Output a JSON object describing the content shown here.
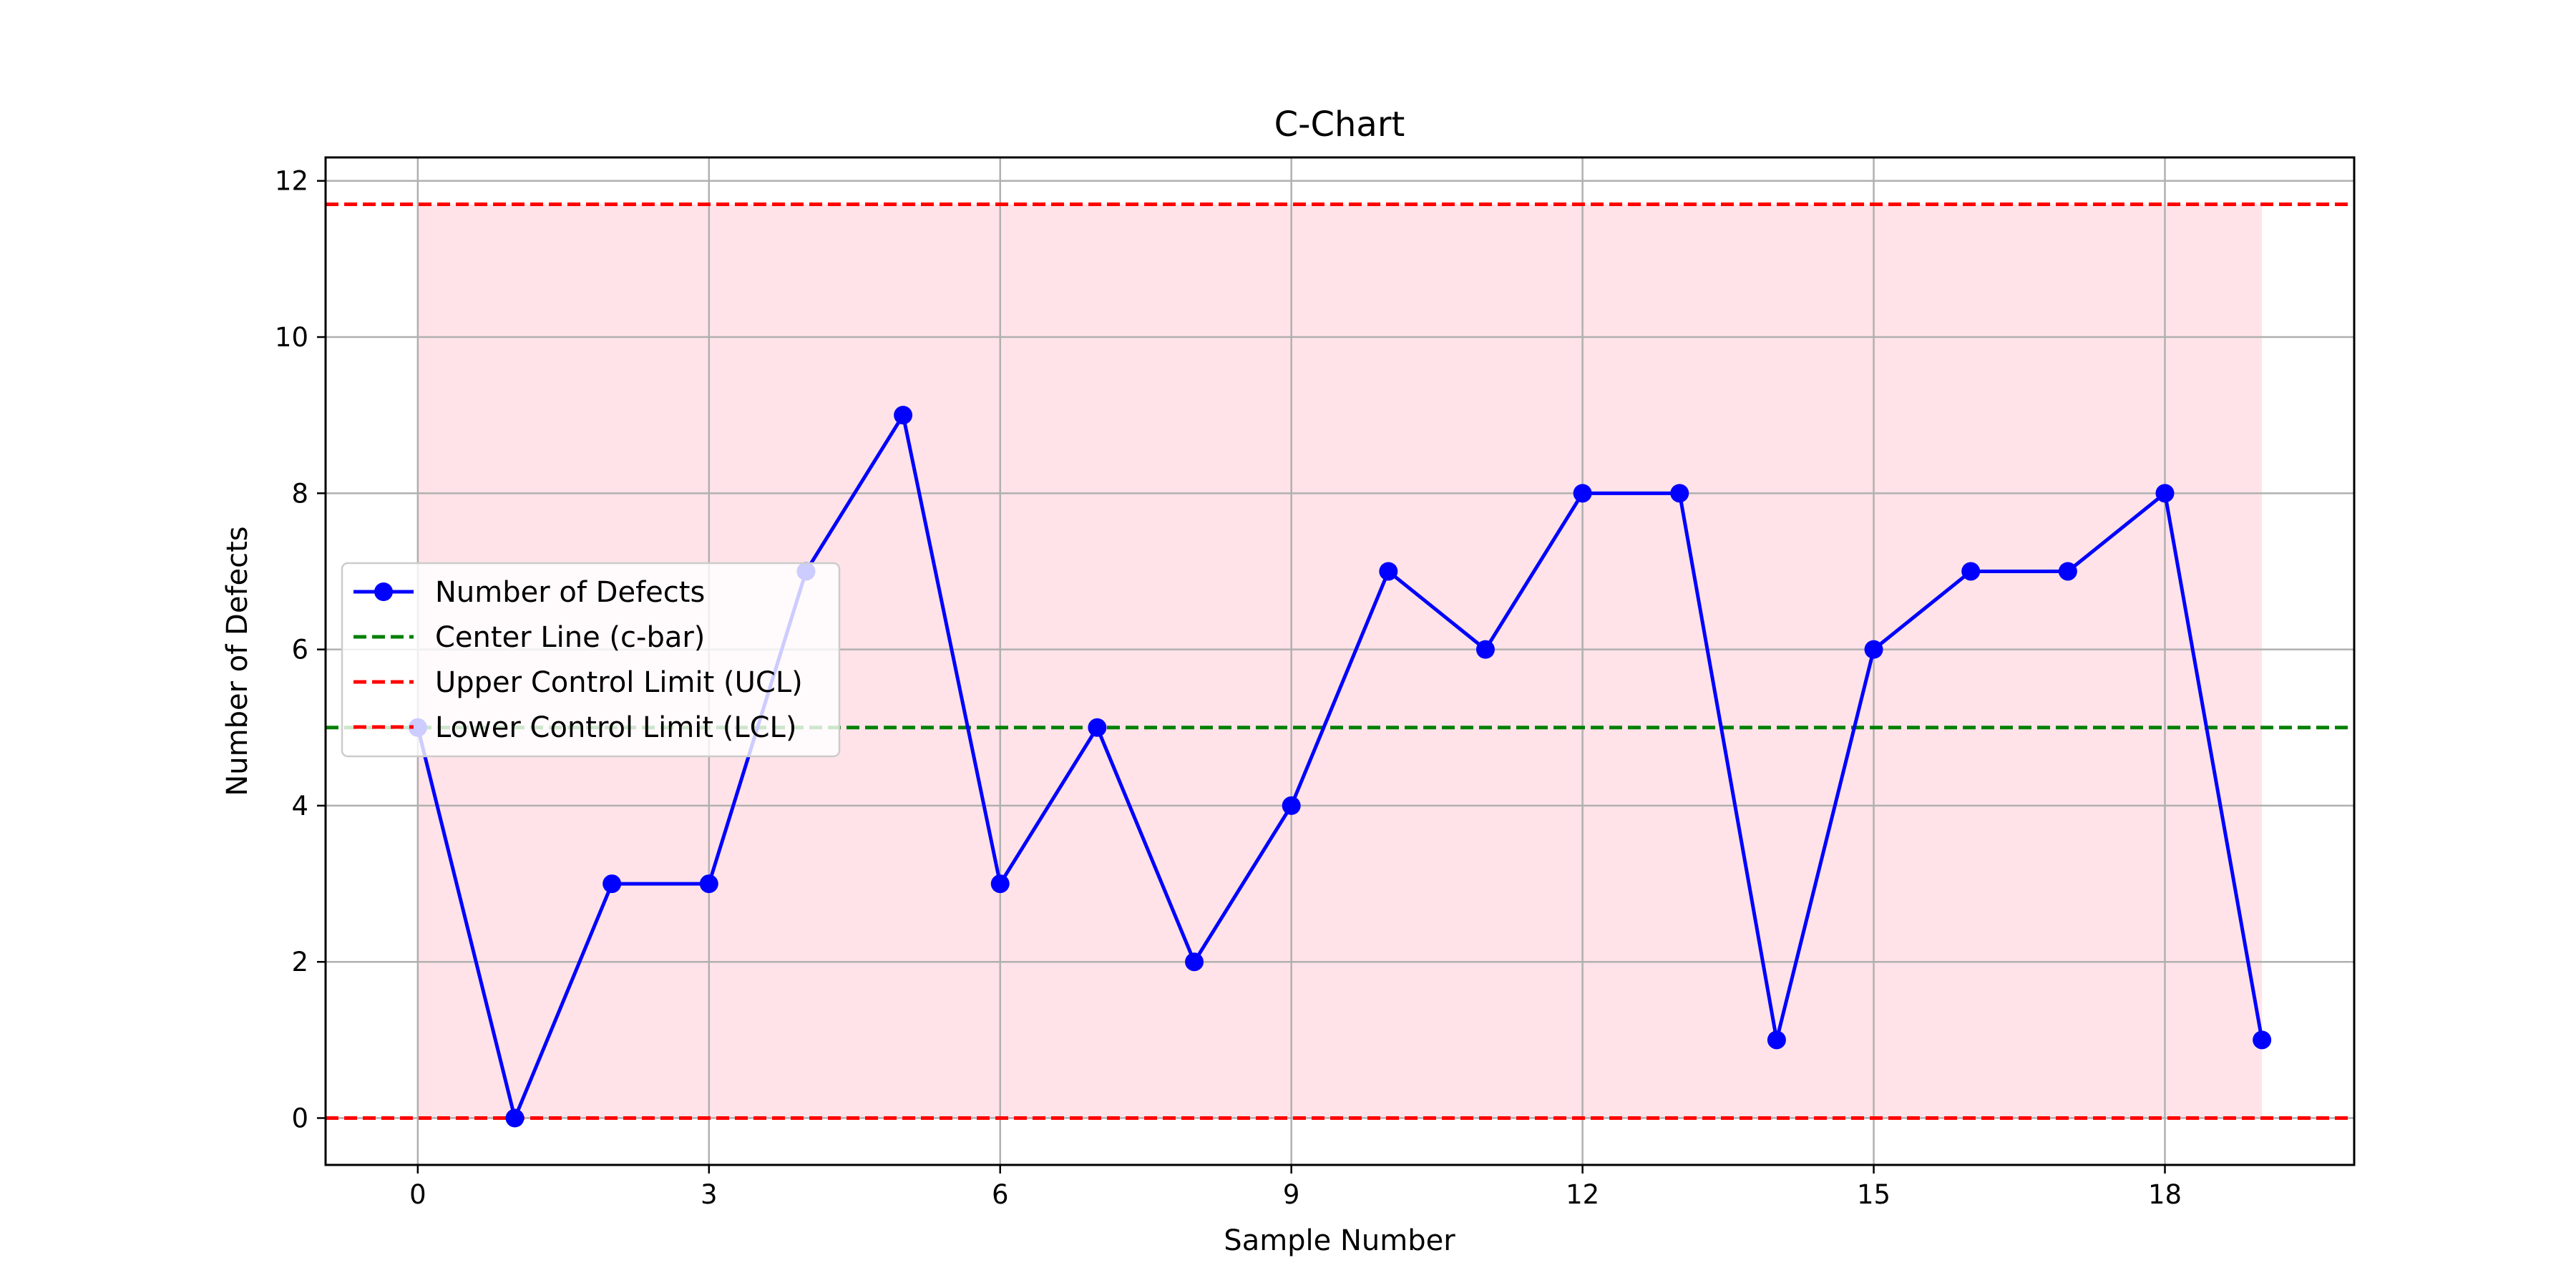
{
  "chart_data": {
    "type": "line",
    "title": "C-Chart",
    "xlabel": "Sample Number",
    "ylabel": "Number of Defects",
    "x": [
      0,
      1,
      2,
      3,
      4,
      5,
      6,
      7,
      8,
      9,
      10,
      11,
      12,
      13,
      14,
      15,
      16,
      17,
      18,
      19
    ],
    "xlim": [
      -0.95,
      19.95
    ],
    "ylim": [
      -0.6,
      12.3
    ],
    "x_ticks": [
      0,
      3,
      6,
      9,
      12,
      15,
      18
    ],
    "y_ticks": [
      0,
      2,
      4,
      6,
      8,
      10,
      12
    ],
    "grid": true,
    "legend_position": "center-left",
    "series": [
      {
        "name": "Number of Defects",
        "values": [
          5,
          0,
          3,
          3,
          7,
          9,
          3,
          5,
          2,
          4,
          7,
          6,
          8,
          8,
          1,
          6,
          7,
          7,
          8,
          1
        ],
        "color": "#0000ff",
        "style": "solid-with-markers"
      }
    ],
    "reference_lines": [
      {
        "name": "Center Line (c-bar)",
        "y": 5.0,
        "color": "#008000",
        "style": "dashed"
      },
      {
        "name": "Upper Control Limit (UCL)",
        "y": 11.7,
        "color": "#ff0000",
        "style": "dashed"
      },
      {
        "name": "Lower Control Limit (LCL)",
        "y": 0,
        "color": "#ff0000",
        "style": "dashed"
      }
    ],
    "shaded_region": {
      "x": [
        0,
        19
      ],
      "y": [
        0,
        11.7
      ],
      "color": "#ffc0cb"
    }
  }
}
